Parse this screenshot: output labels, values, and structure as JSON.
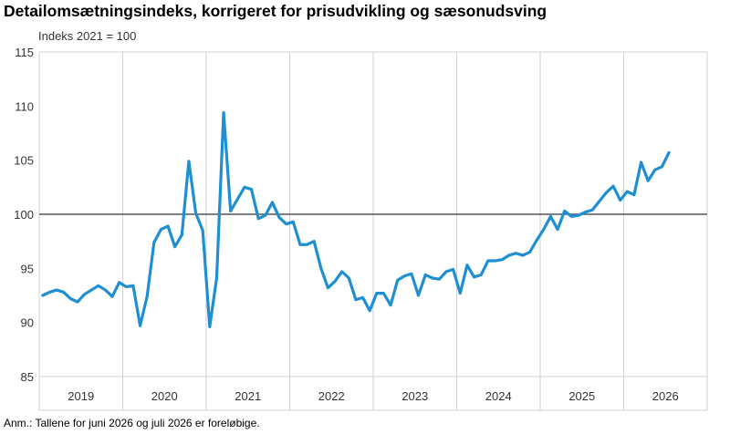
{
  "title": "Detailomsætningsindeks, korrigeret for prisudvikling og sæsonudsving",
  "unit_label": "Indeks 2021 = 100",
  "note": "Anm.: Tallene for juni 2026 og juli 2026 er foreløbige.",
  "colors": {
    "series": "#1f8fd2",
    "reference_line": "#555555",
    "grid": "#d0d0d0",
    "axis_text": "#333333"
  },
  "chart_data": {
    "type": "line",
    "title": "Detailomsætningsindeks, korrigeret for prisudvikling og sæsonudsving",
    "ylabel": "Indeks 2021 = 100",
    "xlabel": "",
    "ylim": [
      85,
      115
    ],
    "yticks": [
      85,
      90,
      95,
      100,
      105,
      110,
      115
    ],
    "xticks": [
      "2019",
      "2020",
      "2021",
      "2022",
      "2023",
      "2024",
      "2025",
      "2026"
    ],
    "x_start": "2019-01",
    "x_end": "2026-07",
    "reference_value": 100,
    "grid": "vertical lines at year boundaries",
    "legend": "none",
    "series": [
      {
        "x": [
          "2019-01",
          "2019-02",
          "2019-03",
          "2019-04",
          "2019-05",
          "2019-06",
          "2019-07",
          "2019-08",
          "2019-09",
          "2019-10",
          "2019-11",
          "2019-12",
          "2020-01",
          "2020-02",
          "2020-03",
          "2020-04",
          "2020-05",
          "2020-06",
          "2020-07",
          "2020-08",
          "2020-09",
          "2020-10",
          "2020-11",
          "2020-12",
          "2021-01",
          "2021-02",
          "2021-03",
          "2021-04",
          "2021-05",
          "2021-06",
          "2021-07",
          "2021-08",
          "2021-09",
          "2021-10",
          "2021-11",
          "2021-12",
          "2022-01",
          "2022-02",
          "2022-03",
          "2022-04",
          "2022-05",
          "2022-06",
          "2022-07",
          "2022-08",
          "2022-09",
          "2022-10",
          "2022-11",
          "2022-12",
          "2023-01",
          "2023-02",
          "2023-03",
          "2023-04",
          "2023-05",
          "2023-06",
          "2023-07",
          "2023-08",
          "2023-09",
          "2023-10",
          "2023-11",
          "2023-12",
          "2024-01",
          "2024-02",
          "2024-03",
          "2024-04",
          "2024-05",
          "2024-06",
          "2024-07",
          "2024-08",
          "2024-09",
          "2024-10",
          "2024-11",
          "2024-12",
          "2025-01",
          "2025-02",
          "2025-03",
          "2025-04",
          "2025-05",
          "2025-06",
          "2025-07",
          "2025-08",
          "2025-09",
          "2025-10",
          "2025-11",
          "2025-12",
          "2026-01",
          "2026-02",
          "2026-03",
          "2026-04",
          "2026-05",
          "2026-06",
          "2026-07"
        ],
        "values": [
          92.5,
          92.8,
          93.0,
          92.8,
          92.2,
          91.9,
          92.6,
          93.0,
          93.4,
          93.0,
          92.4,
          93.7,
          93.3,
          93.4,
          89.7,
          92.4,
          97.4,
          98.6,
          98.9,
          97.0,
          98.1,
          104.9,
          100.1,
          98.5,
          89.6,
          94.1,
          109.4,
          100.3,
          101.4,
          102.5,
          102.3,
          99.6,
          99.9,
          101.1,
          99.7,
          99.1,
          99.3,
          97.2,
          97.2,
          97.5,
          95.0,
          93.2,
          93.8,
          94.7,
          94.1,
          92.1,
          92.3,
          91.1,
          92.7,
          92.7,
          91.6,
          93.9,
          94.3,
          94.5,
          92.5,
          94.4,
          94.1,
          94.0,
          94.7,
          94.9,
          92.7,
          95.3,
          94.2,
          94.4,
          95.7,
          95.7,
          95.8,
          96.2,
          96.4,
          96.2,
          96.5,
          97.6,
          98.6,
          99.8,
          98.6,
          100.3,
          99.8,
          99.9,
          100.2,
          100.4,
          101.2,
          102.0,
          102.6,
          101.3,
          102.1,
          101.8,
          104.8,
          103.1,
          104.1,
          104.4,
          105.7
        ]
      }
    ]
  }
}
